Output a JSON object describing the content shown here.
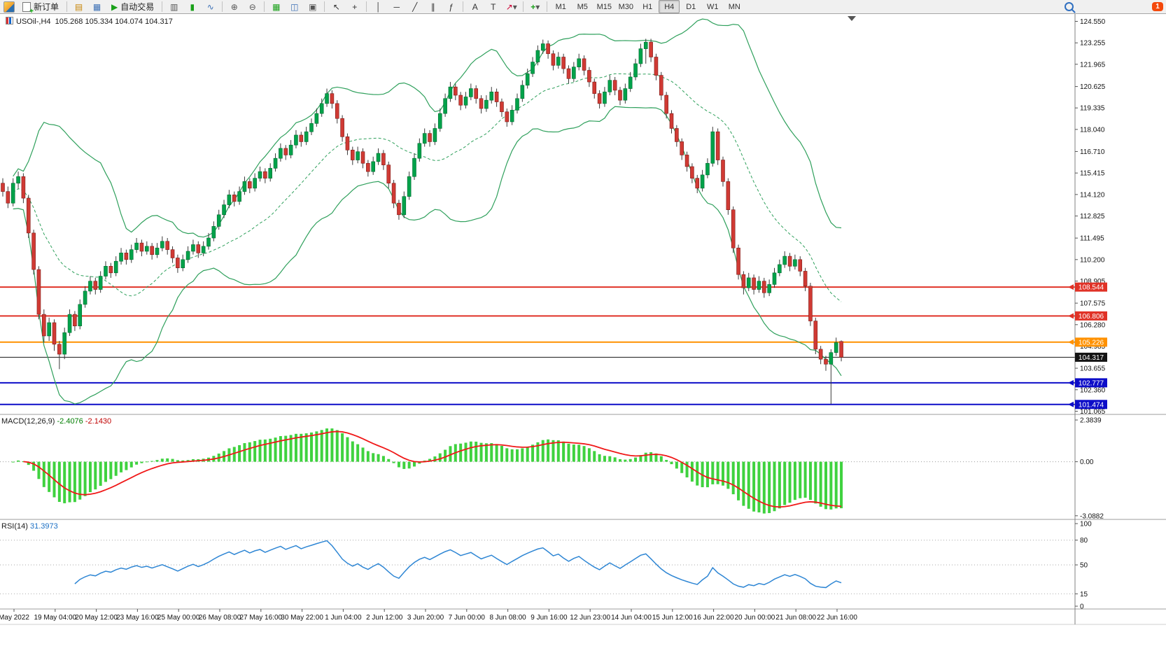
{
  "window": {
    "notification_count": "1"
  },
  "toolbar": {
    "new_order_label": "新订单",
    "auto_trading_label": "自动交易",
    "timeframes": [
      "M1",
      "M5",
      "M15",
      "M30",
      "H1",
      "H4",
      "D1",
      "W1",
      "MN"
    ],
    "active_timeframe": "H4",
    "icon_glyphs": {
      "market_watch": "▤",
      "charts_grid": "▦",
      "play": "▶",
      "bar_chart": "▥",
      "candle_chart": "▮",
      "line_chart": "∿",
      "zoom_in": "⊕",
      "zoom_out": "⊖",
      "new_chart": "▦",
      "tile_windows": "◫",
      "cascade_windows": "▣",
      "cursor": "↖",
      "crosshair": "+",
      "vertical_line": "│",
      "horizontal_line": "─",
      "trend_line": "╱",
      "channel": "∥",
      "fibonacci": "ƒ",
      "text": "A",
      "label": "T",
      "arrows": "↗",
      "dropdown": "▾",
      "indicators": "+"
    }
  },
  "colors": {
    "up": "#00A24A",
    "up_dark": "#006B2F",
    "down": "#D03A34",
    "down_dark": "#7E1C18",
    "wick": "#3a3a3a",
    "band": "#2FA05C",
    "macd_hist": "#3FD23F",
    "macd_signal": "#F01818",
    "rsi_line": "#2E86D4",
    "axis_text": "#111111",
    "toolbar_bg": "#f0f0f0"
  },
  "chart_data": [
    {
      "type": "candlestick",
      "title": "USOil-,H4",
      "ohlc_label": "105.268 105.334 104.074 104.317",
      "y_range": [
        101.065,
        124.55
      ],
      "y_tick_labels": [
        "124.550",
        "123.255",
        "121.965",
        "120.625",
        "119.335",
        "118.040",
        "116.710",
        "115.415",
        "114.120",
        "112.825",
        "111.495",
        "110.200",
        "108.905",
        "107.575",
        "106.280",
        "104.985",
        "103.655",
        "102.360",
        "101.065"
      ],
      "x_tick_labels": [
        "May 2022",
        "19 May 04:00",
        "20 May 12:00",
        "23 May 16:00",
        "25 May 00:00",
        "26 May 08:00",
        "27 May 16:00",
        "30 May 22:00",
        "1 Jun 04:00",
        "2 Jun 12:00",
        "3 Jun 20:00",
        "7 Jun 00:00",
        "8 Jun 08:00",
        "9 Jun 16:00",
        "12 Jun 23:00",
        "14 Jun 04:00",
        "15 Jun 12:00",
        "16 Jun 22:00",
        "20 Jun 00:00",
        "21 Jun 08:00",
        "22 Jun 16:00"
      ],
      "overlays": [
        {
          "name": "bollinger-bands",
          "period": 20,
          "deviation": 2
        }
      ],
      "levels": [
        {
          "price": 108.544,
          "label": "108.544",
          "color": "#E03226",
          "width": 2,
          "arrow": true
        },
        {
          "price": 106.806,
          "label": "106.806",
          "color": "#E03226",
          "width": 2,
          "arrow": true
        },
        {
          "price": 105.226,
          "label": "105.226",
          "color": "#FF9100",
          "width": 2,
          "arrow": true
        },
        {
          "price": 104.317,
          "label": "104.317",
          "color": "#141414",
          "width": 1,
          "arrow": false
        },
        {
          "price": 102.777,
          "label": "102.777",
          "color": "#0D0DC8",
          "width": 2,
          "arrow": true
        },
        {
          "price": 101.474,
          "label": "101.474",
          "color": "#0D0DC8",
          "width": 2,
          "arrow": true
        }
      ],
      "candles": [
        [
          114.8,
          115.1,
          114.0,
          114.3
        ],
        [
          114.3,
          114.6,
          113.3,
          113.6
        ],
        [
          113.6,
          115.1,
          113.4,
          114.8
        ],
        [
          114.8,
          115.5,
          114.5,
          115.2
        ],
        [
          115.2,
          115.4,
          113.6,
          113.9
        ],
        [
          113.9,
          114.1,
          111.5,
          111.8
        ],
        [
          111.8,
          112.0,
          109.3,
          109.6
        ],
        [
          109.6,
          109.8,
          106.6,
          106.9
        ],
        [
          106.9,
          107.2,
          105.2,
          105.6
        ],
        [
          105.6,
          106.7,
          105.3,
          106.4
        ],
        [
          106.4,
          106.6,
          104.7,
          105.1
        ],
        [
          105.1,
          105.3,
          103.6,
          104.5
        ],
        [
          104.5,
          106.1,
          104.2,
          105.8
        ],
        [
          105.8,
          107.2,
          105.6,
          106.9
        ],
        [
          106.9,
          107.1,
          105.9,
          106.2
        ],
        [
          106.2,
          107.8,
          106.0,
          107.5
        ],
        [
          107.5,
          108.6,
          107.3,
          108.3
        ],
        [
          108.3,
          109.2,
          108.1,
          108.9
        ],
        [
          108.9,
          109.1,
          108.1,
          108.4
        ],
        [
          108.4,
          109.5,
          108.2,
          109.2
        ],
        [
          109.2,
          110.1,
          109.0,
          109.8
        ],
        [
          109.8,
          110.0,
          109.1,
          109.4
        ],
        [
          109.4,
          110.4,
          109.2,
          110.1
        ],
        [
          110.1,
          110.9,
          109.9,
          110.6
        ],
        [
          110.6,
          110.8,
          109.9,
          110.2
        ],
        [
          110.2,
          111.1,
          110.0,
          110.8
        ],
        [
          110.8,
          111.5,
          110.6,
          111.2
        ],
        [
          111.2,
          111.4,
          110.4,
          110.7
        ],
        [
          110.7,
          111.3,
          110.5,
          111.0
        ],
        [
          111.0,
          111.2,
          110.2,
          110.5
        ],
        [
          110.5,
          111.2,
          110.3,
          110.9
        ],
        [
          110.9,
          111.6,
          110.7,
          111.3
        ],
        [
          111.3,
          111.5,
          110.5,
          110.8
        ],
        [
          110.8,
          111.0,
          110.0,
          110.3
        ],
        [
          110.3,
          110.5,
          109.4,
          109.7
        ],
        [
          109.7,
          110.5,
          109.5,
          110.2
        ],
        [
          110.2,
          111.0,
          110.0,
          110.7
        ],
        [
          110.7,
          111.4,
          110.5,
          111.1
        ],
        [
          111.1,
          111.3,
          110.3,
          110.6
        ],
        [
          110.6,
          111.3,
          110.4,
          111.0
        ],
        [
          111.0,
          111.8,
          110.8,
          111.5
        ],
        [
          111.5,
          112.5,
          111.3,
          112.2
        ],
        [
          112.2,
          113.2,
          112.0,
          112.9
        ],
        [
          112.9,
          113.8,
          112.7,
          113.5
        ],
        [
          113.5,
          114.4,
          113.3,
          114.1
        ],
        [
          114.1,
          114.3,
          113.4,
          113.7
        ],
        [
          113.7,
          114.6,
          113.5,
          114.3
        ],
        [
          114.3,
          115.2,
          114.1,
          114.9
        ],
        [
          114.9,
          115.1,
          114.2,
          114.5
        ],
        [
          114.5,
          115.4,
          114.3,
          115.1
        ],
        [
          115.1,
          115.8,
          114.9,
          115.5
        ],
        [
          115.5,
          115.7,
          114.8,
          115.1
        ],
        [
          115.1,
          116.0,
          114.9,
          115.7
        ],
        [
          115.7,
          116.6,
          115.5,
          116.3
        ],
        [
          116.3,
          117.2,
          116.1,
          116.9
        ],
        [
          116.9,
          117.1,
          116.2,
          116.5
        ],
        [
          116.5,
          117.4,
          116.3,
          117.1
        ],
        [
          117.1,
          118.0,
          116.9,
          117.7
        ],
        [
          117.7,
          117.9,
          117.0,
          117.3
        ],
        [
          117.3,
          118.2,
          117.1,
          117.9
        ],
        [
          117.9,
          118.7,
          117.7,
          118.4
        ],
        [
          118.4,
          119.3,
          118.2,
          119.0
        ],
        [
          119.0,
          119.9,
          118.8,
          119.6
        ],
        [
          119.6,
          120.5,
          119.4,
          120.2
        ],
        [
          120.2,
          120.4,
          119.3,
          119.6
        ],
        [
          119.6,
          119.8,
          118.4,
          118.7
        ],
        [
          118.7,
          118.9,
          117.3,
          117.6
        ],
        [
          117.6,
          117.8,
          116.5,
          116.8
        ],
        [
          116.8,
          117.0,
          115.9,
          116.2
        ],
        [
          116.2,
          117.0,
          116.0,
          116.7
        ],
        [
          116.7,
          116.9,
          115.7,
          116.0
        ],
        [
          116.0,
          116.2,
          115.2,
          115.5
        ],
        [
          115.5,
          116.4,
          115.3,
          116.1
        ],
        [
          116.1,
          116.9,
          115.9,
          116.6
        ],
        [
          116.6,
          116.8,
          115.6,
          115.9
        ],
        [
          115.9,
          116.1,
          114.5,
          114.8
        ],
        [
          114.8,
          115.0,
          113.3,
          113.6
        ],
        [
          113.6,
          113.8,
          112.6,
          112.9
        ],
        [
          112.9,
          114.3,
          112.7,
          114.0
        ],
        [
          114.0,
          115.5,
          113.8,
          115.2
        ],
        [
          115.2,
          116.6,
          115.0,
          116.3
        ],
        [
          116.3,
          117.5,
          116.1,
          117.2
        ],
        [
          117.2,
          118.1,
          117.0,
          117.8
        ],
        [
          117.8,
          118.0,
          117.0,
          117.3
        ],
        [
          117.3,
          118.4,
          117.1,
          118.1
        ],
        [
          118.1,
          119.3,
          117.9,
          119.0
        ],
        [
          119.0,
          120.2,
          118.8,
          119.9
        ],
        [
          119.9,
          120.9,
          119.7,
          120.6
        ],
        [
          120.6,
          120.8,
          119.8,
          120.1
        ],
        [
          120.1,
          120.3,
          119.2,
          119.5
        ],
        [
          119.5,
          120.3,
          119.3,
          120.0
        ],
        [
          120.0,
          120.8,
          119.8,
          120.5
        ],
        [
          120.5,
          120.7,
          119.6,
          119.9
        ],
        [
          119.9,
          120.1,
          119.0,
          119.3
        ],
        [
          119.3,
          120.1,
          119.1,
          119.8
        ],
        [
          119.8,
          120.6,
          119.6,
          120.3
        ],
        [
          120.3,
          120.5,
          119.4,
          119.7
        ],
        [
          119.7,
          119.9,
          118.8,
          119.1
        ],
        [
          119.1,
          119.3,
          118.2,
          118.5
        ],
        [
          118.5,
          119.5,
          118.3,
          119.2
        ],
        [
          119.2,
          120.2,
          119.0,
          119.9
        ],
        [
          119.9,
          121.0,
          119.7,
          120.7
        ],
        [
          120.7,
          121.7,
          120.5,
          121.4
        ],
        [
          121.4,
          122.4,
          121.2,
          122.1
        ],
        [
          122.1,
          123.1,
          121.9,
          122.8
        ],
        [
          122.8,
          123.45,
          122.6,
          123.2
        ],
        [
          123.2,
          123.4,
          122.3,
          122.6
        ],
        [
          122.6,
          122.8,
          121.6,
          121.9
        ],
        [
          121.9,
          122.7,
          121.7,
          122.4
        ],
        [
          122.4,
          122.6,
          121.4,
          121.7
        ],
        [
          121.7,
          121.9,
          120.8,
          121.1
        ],
        [
          121.1,
          122.1,
          120.9,
          121.8
        ],
        [
          121.8,
          122.6,
          121.6,
          122.3
        ],
        [
          122.3,
          122.5,
          121.3,
          121.6
        ],
        [
          121.6,
          121.8,
          120.6,
          120.9
        ],
        [
          120.9,
          121.1,
          119.9,
          120.2
        ],
        [
          120.2,
          120.4,
          119.3,
          119.6
        ],
        [
          119.6,
          120.6,
          119.4,
          120.3
        ],
        [
          120.3,
          121.3,
          120.1,
          121.0
        ],
        [
          121.0,
          121.2,
          120.1,
          120.4
        ],
        [
          120.4,
          120.6,
          119.5,
          119.8
        ],
        [
          119.8,
          120.8,
          119.6,
          120.5
        ],
        [
          120.5,
          121.5,
          120.3,
          121.2
        ],
        [
          121.2,
          122.3,
          121.0,
          122.0
        ],
        [
          122.0,
          123.2,
          121.8,
          122.9
        ],
        [
          122.9,
          123.5,
          122.0,
          123.3
        ],
        [
          123.3,
          123.5,
          122.1,
          122.4
        ],
        [
          122.4,
          122.6,
          121.0,
          121.3
        ],
        [
          121.3,
          121.5,
          119.8,
          120.1
        ],
        [
          120.1,
          120.3,
          118.7,
          119.0
        ],
        [
          119.0,
          119.2,
          117.8,
          118.1
        ],
        [
          118.1,
          118.3,
          117.0,
          117.3
        ],
        [
          117.3,
          117.5,
          116.2,
          116.5
        ],
        [
          116.5,
          116.7,
          115.5,
          115.8
        ],
        [
          115.8,
          116.0,
          114.8,
          115.1
        ],
        [
          115.1,
          115.3,
          114.2,
          114.5
        ],
        [
          114.5,
          115.6,
          114.3,
          115.3
        ],
        [
          115.3,
          116.3,
          115.1,
          116.0
        ],
        [
          116.0,
          118.2,
          115.8,
          117.9
        ],
        [
          117.9,
          118.1,
          115.9,
          116.2
        ],
        [
          116.2,
          116.4,
          114.6,
          114.9
        ],
        [
          114.9,
          115.1,
          112.9,
          113.2
        ],
        [
          113.2,
          113.4,
          110.6,
          110.9
        ],
        [
          110.9,
          111.1,
          109.0,
          109.3
        ],
        [
          109.3,
          109.5,
          108.1,
          108.5
        ],
        [
          108.5,
          109.4,
          108.3,
          109.1
        ],
        [
          109.1,
          109.3,
          108.1,
          108.4
        ],
        [
          108.4,
          109.2,
          108.2,
          108.9
        ],
        [
          108.9,
          109.1,
          107.9,
          108.2
        ],
        [
          108.2,
          109.0,
          108.0,
          108.7
        ],
        [
          108.7,
          109.7,
          108.5,
          109.4
        ],
        [
          109.4,
          110.2,
          109.2,
          109.9
        ],
        [
          109.9,
          110.7,
          109.7,
          110.4
        ],
        [
          110.4,
          110.6,
          109.5,
          109.8
        ],
        [
          109.8,
          110.5,
          109.6,
          110.2
        ],
        [
          110.2,
          110.4,
          109.2,
          109.5
        ],
        [
          109.5,
          109.7,
          108.3,
          108.6
        ],
        [
          108.6,
          108.8,
          106.2,
          106.5
        ],
        [
          106.5,
          106.7,
          104.5,
          104.8
        ],
        [
          104.8,
          105.0,
          103.9,
          104.2
        ],
        [
          104.2,
          104.4,
          103.5,
          103.9
        ],
        [
          103.9,
          104.8,
          101.5,
          104.6
        ],
        [
          104.6,
          105.5,
          104.4,
          105.2
        ],
        [
          105.27,
          105.33,
          104.07,
          104.32
        ]
      ]
    },
    {
      "type": "macd-histogram",
      "label": "MACD(12,26,9)",
      "values": [
        "-2.4076",
        "-2.1430"
      ],
      "params": {
        "fast": 12,
        "slow": 26,
        "signal": 9
      },
      "y_tick_labels": [
        "2.3839",
        "0.00",
        "-3.0882"
      ]
    },
    {
      "type": "line",
      "label": "RSI(14)",
      "value": "31.3973",
      "period": 14,
      "levels": [
        80,
        50,
        15
      ],
      "y_tick_labels": [
        "100",
        "80",
        "50",
        "15",
        "0"
      ]
    }
  ]
}
